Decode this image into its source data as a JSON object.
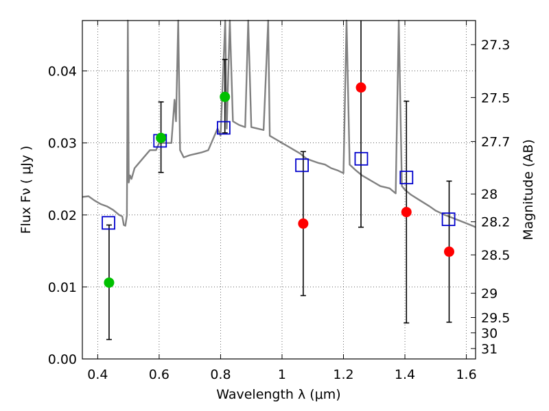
{
  "chart_data": {
    "type": "scatter",
    "xlabel": "Wavelength  λ (μm)",
    "ylabel": "Flux  Fν  ( μJy )",
    "ylabel_right": "Magnitude (AB)",
    "xlim": [
      0.35,
      1.63
    ],
    "ylim": [
      0.0,
      0.047
    ],
    "x_ticks": [
      0.4,
      0.6,
      0.8,
      1.0,
      1.2,
      1.4,
      1.6
    ],
    "x_tick_labels": [
      "0.4",
      "0.6",
      "0.8",
      "1",
      "1.2",
      "1.4",
      "1.6"
    ],
    "y_ticks": [
      0.0,
      0.01,
      0.02,
      0.03,
      0.04
    ],
    "y_tick_labels": [
      "0.00",
      "0.01",
      "0.02",
      "0.03",
      "0.04"
    ],
    "right_ticks": [
      {
        "mag": 27.3,
        "label": "27.3"
      },
      {
        "mag": 27.5,
        "label": "27.5"
      },
      {
        "mag": 27.7,
        "label": "27.7"
      },
      {
        "mag": 28.0,
        "label": "28"
      },
      {
        "mag": 28.2,
        "label": "28.2"
      },
      {
        "mag": 28.5,
        "label": "28.5"
      },
      {
        "mag": 29.0,
        "label": "29"
      },
      {
        "mag": 29.5,
        "label": "29.5"
      },
      {
        "mag": 30.0,
        "label": "30"
      },
      {
        "mag": 31.0,
        "label": "31"
      }
    ],
    "grid": true,
    "colors": {
      "spectrum": "#808080",
      "green": "#00c000",
      "red": "#ff0000",
      "model_box": "#0000cc",
      "errorbar": "#000000"
    },
    "spectrum": [
      [
        0.35,
        0.0225
      ],
      [
        0.37,
        0.0226
      ],
      [
        0.39,
        0.022
      ],
      [
        0.41,
        0.0215
      ],
      [
        0.43,
        0.0212
      ],
      [
        0.45,
        0.0207
      ],
      [
        0.47,
        0.02
      ],
      [
        0.48,
        0.0198
      ],
      [
        0.485,
        0.0186
      ],
      [
        0.49,
        0.0185
      ],
      [
        0.495,
        0.0199
      ],
      [
        0.498,
        0.047
      ],
      [
        0.501,
        0.0245
      ],
      [
        0.505,
        0.0255
      ],
      [
        0.51,
        0.025
      ],
      [
        0.52,
        0.0265
      ],
      [
        0.53,
        0.027
      ],
      [
        0.55,
        0.028
      ],
      [
        0.57,
        0.029
      ],
      [
        0.59,
        0.029
      ],
      [
        0.6,
        0.03
      ],
      [
        0.62,
        0.03
      ],
      [
        0.64,
        0.03
      ],
      [
        0.65,
        0.036
      ],
      [
        0.655,
        0.033
      ],
      [
        0.662,
        0.047
      ],
      [
        0.668,
        0.029
      ],
      [
        0.68,
        0.028
      ],
      [
        0.7,
        0.0283
      ],
      [
        0.72,
        0.0285
      ],
      [
        0.74,
        0.0287
      ],
      [
        0.76,
        0.029
      ],
      [
        0.77,
        0.03
      ],
      [
        0.78,
        0.031
      ],
      [
        0.79,
        0.032
      ],
      [
        0.8,
        0.031
      ],
      [
        0.815,
        0.047
      ],
      [
        0.82,
        0.032
      ],
      [
        0.83,
        0.047
      ],
      [
        0.84,
        0.033
      ],
      [
        0.86,
        0.0325
      ],
      [
        0.88,
        0.0322
      ],
      [
        0.89,
        0.047
      ],
      [
        0.9,
        0.0322
      ],
      [
        0.92,
        0.032
      ],
      [
        0.94,
        0.0318
      ],
      [
        0.955,
        0.047
      ],
      [
        0.96,
        0.031
      ],
      [
        0.98,
        0.0305
      ],
      [
        1.0,
        0.03
      ],
      [
        1.02,
        0.0295
      ],
      [
        1.04,
        0.029
      ],
      [
        1.06,
        0.0285
      ],
      [
        1.08,
        0.0278
      ],
      [
        1.1,
        0.0275
      ],
      [
        1.12,
        0.0272
      ],
      [
        1.14,
        0.027
      ],
      [
        1.16,
        0.0265
      ],
      [
        1.18,
        0.0262
      ],
      [
        1.2,
        0.0258
      ],
      [
        1.21,
        0.047
      ],
      [
        1.22,
        0.027
      ],
      [
        1.24,
        0.0262
      ],
      [
        1.26,
        0.0255
      ],
      [
        1.28,
        0.025
      ],
      [
        1.3,
        0.0245
      ],
      [
        1.32,
        0.024
      ],
      [
        1.35,
        0.0237
      ],
      [
        1.37,
        0.023
      ],
      [
        1.38,
        0.047
      ],
      [
        1.39,
        0.024
      ],
      [
        1.4,
        0.0235
      ],
      [
        1.42,
        0.0228
      ],
      [
        1.45,
        0.022
      ],
      [
        1.48,
        0.0212
      ],
      [
        1.5,
        0.0206
      ],
      [
        1.53,
        0.02
      ],
      [
        1.56,
        0.0195
      ],
      [
        1.59,
        0.019
      ],
      [
        1.62,
        0.0185
      ],
      [
        1.63,
        0.0183
      ]
    ],
    "observed": [
      {
        "x": 0.437,
        "y": 0.0106,
        "color": "green"
      },
      {
        "x": 0.606,
        "y": 0.0307,
        "color": "green"
      },
      {
        "x": 0.814,
        "y": 0.0364,
        "color": "green"
      },
      {
        "x": 1.069,
        "y": 0.0188,
        "color": "red"
      },
      {
        "x": 1.257,
        "y": 0.0377,
        "color": "red"
      },
      {
        "x": 1.405,
        "y": 0.0204,
        "color": "red"
      },
      {
        "x": 1.544,
        "y": 0.0149,
        "color": "red"
      }
    ],
    "model": [
      {
        "x": 0.435,
        "y": 0.0189
      },
      {
        "x": 0.603,
        "y": 0.0303
      },
      {
        "x": 0.81,
        "y": 0.0321
      },
      {
        "x": 1.065,
        "y": 0.0269
      },
      {
        "x": 1.258,
        "y": 0.0278
      },
      {
        "x": 1.405,
        "y": 0.0252
      },
      {
        "x": 1.542,
        "y": 0.0194
      }
    ],
    "errorbars": [
      {
        "x": 0.437,
        "low": 0.0027,
        "high": 0.0186
      },
      {
        "x": 0.606,
        "low": 0.0259,
        "high": 0.0357
      },
      {
        "x": 0.814,
        "low": 0.0314,
        "high": 0.0416
      },
      {
        "x": 1.069,
        "low": 0.0088,
        "high": 0.0288
      },
      {
        "x": 1.257,
        "low": 0.0183,
        "high": 0.047
      },
      {
        "x": 1.405,
        "low": 0.005,
        "high": 0.0358
      },
      {
        "x": 1.544,
        "low": 0.0051,
        "high": 0.0247
      }
    ]
  }
}
